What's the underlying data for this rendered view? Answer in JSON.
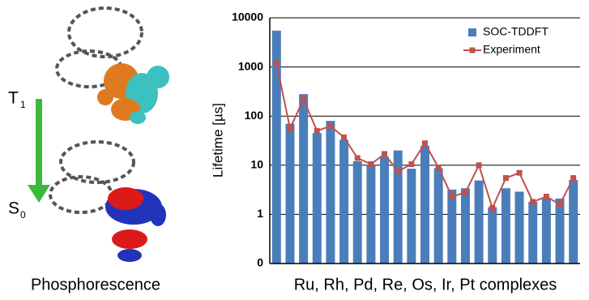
{
  "figure": {
    "left": {
      "t_label": "T",
      "t_sub": "1",
      "s_label": "S",
      "s_sub": "0",
      "caption": "Phosphorescence"
    }
  },
  "chart_data": {
    "type": "bar_line",
    "y_label": "Lifetime [µs]",
    "x_label": "Ru, Rh, Pd, Re, Os, Ir, Pt complexes",
    "log_y": true,
    "grid": true,
    "legend": "top-right",
    "ylim": [
      0.1,
      10000
    ],
    "yticks": [
      {
        "value": 0.1,
        "label": "0"
      },
      1,
      10,
      100,
      1000,
      10000
    ],
    "categories": [
      null,
      null,
      null,
      null,
      null,
      null,
      null,
      null,
      null,
      null,
      null,
      null,
      null,
      null,
      null,
      null,
      null,
      null,
      null,
      null,
      null,
      null,
      null
    ],
    "series": [
      {
        "name": "SOC-TDDFT",
        "color": "#4a7ebb",
        "kind": "bar",
        "values": [
          5500,
          70,
          280,
          45,
          80,
          33,
          12,
          10,
          15,
          20,
          8.5,
          25,
          8.7,
          3.2,
          3.4,
          4.9,
          1.4,
          3.4,
          2.9,
          1.8,
          2.1,
          2.1,
          5
        ]
      },
      {
        "name": "Experiment",
        "color": "#c0504d",
        "kind": "line",
        "values": [
          1200,
          56,
          220,
          50,
          63,
          37,
          14,
          10.5,
          17,
          7.5,
          10.5,
          28,
          9,
          2.3,
          2.8,
          10,
          1.35,
          5.5,
          7,
          1.8,
          2.3,
          1.6,
          5.5
        ]
      }
    ]
  }
}
